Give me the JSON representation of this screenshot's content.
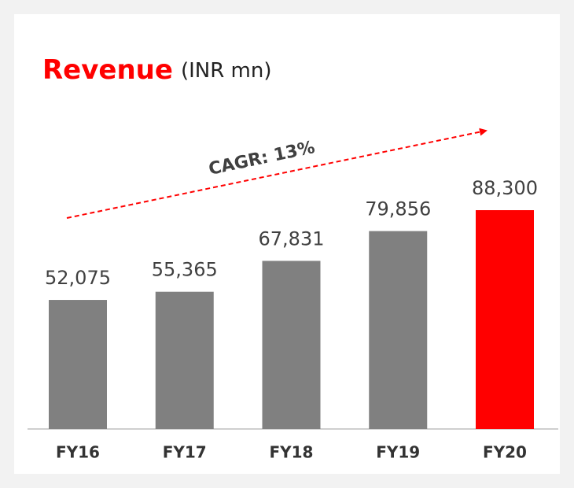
{
  "chart_data": {
    "type": "bar",
    "title": "Revenue",
    "subtitle": "(INR mn)",
    "annotation": "CAGR: 13%",
    "categories": [
      "FY16",
      "FY17",
      "FY18",
      "FY19",
      "FY20"
    ],
    "values": [
      52075,
      55365,
      67831,
      79856,
      88300
    ],
    "value_labels": [
      "52,075",
      "55,365",
      "67,831",
      "79,856",
      "88,300"
    ],
    "colors": [
      "#808080",
      "#808080",
      "#808080",
      "#808080",
      "#ff0000"
    ]
  }
}
